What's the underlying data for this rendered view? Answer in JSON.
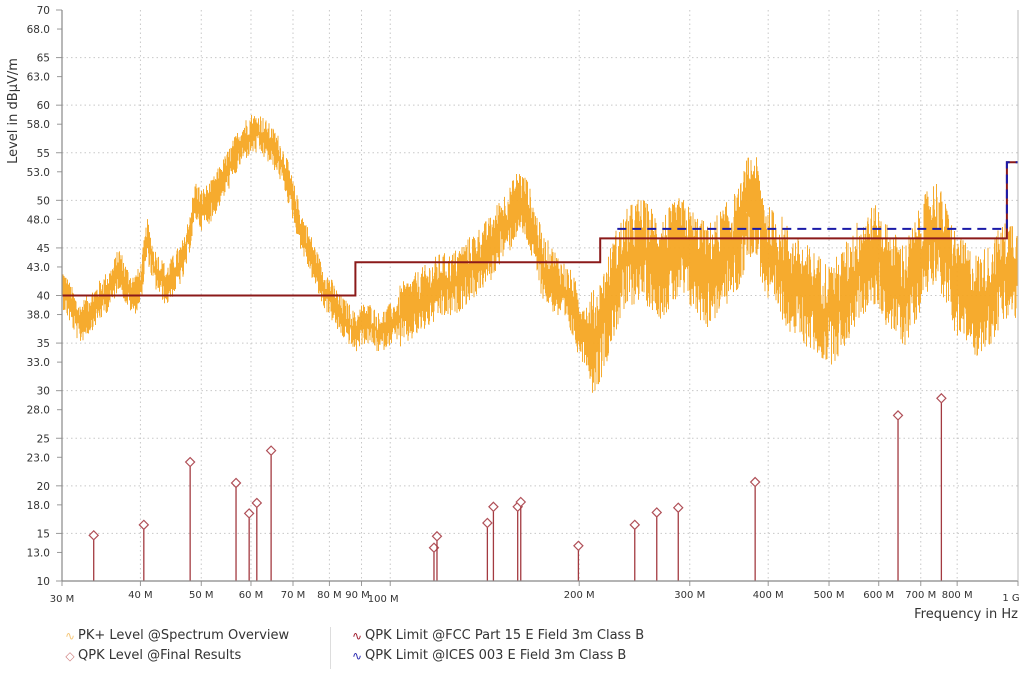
{
  "chart_data": {
    "type": "line",
    "xlabel": "Frequency in Hz",
    "ylabel": "Level in dBµV/m",
    "xscale": "log",
    "xlim_hz": [
      30000000,
      1000000000
    ],
    "ylim": [
      10,
      70
    ],
    "grid": true,
    "y_major_ticks": [
      {
        "value": 70,
        "label": "70"
      },
      {
        "value": 65,
        "label": "65"
      },
      {
        "value": 60,
        "label": "60"
      },
      {
        "value": 55,
        "label": "55"
      },
      {
        "value": 50,
        "label": "50"
      },
      {
        "value": 45,
        "label": "45"
      },
      {
        "value": 40,
        "label": "40"
      },
      {
        "value": 35,
        "label": "35"
      },
      {
        "value": 30,
        "label": "30"
      },
      {
        "value": 25,
        "label": "25"
      },
      {
        "value": 20,
        "label": "20"
      },
      {
        "value": 15,
        "label": "15"
      },
      {
        "value": 10,
        "label": "10"
      }
    ],
    "y_minor_ticks": [
      {
        "value": 68,
        "label": "68.0"
      },
      {
        "value": 63,
        "label": "63.0"
      },
      {
        "value": 58,
        "label": "58.0"
      },
      {
        "value": 53,
        "label": "53.0"
      },
      {
        "value": 48,
        "label": "48.0"
      },
      {
        "value": 43,
        "label": "43.0"
      },
      {
        "value": 38,
        "label": "38.0"
      },
      {
        "value": 33,
        "label": "33.0"
      },
      {
        "value": 28,
        "label": "28.0"
      },
      {
        "value": 23,
        "label": "23.0"
      },
      {
        "value": 18,
        "label": "18.0"
      },
      {
        "value": 13,
        "label": "13.0"
      }
    ],
    "x_ticks": [
      {
        "value": 30000000,
        "label": "30 M"
      },
      {
        "value": 40000000,
        "label": "40 M"
      },
      {
        "value": 50000000,
        "label": "50 M"
      },
      {
        "value": 60000000,
        "label": "60 M"
      },
      {
        "value": 70000000,
        "label": "70 M"
      },
      {
        "value": 80000000,
        "label": "80 M"
      },
      {
        "value": 90000000,
        "label": "90 M"
      },
      {
        "value": 100000000,
        "label": "100 M"
      },
      {
        "value": 200000000,
        "label": "200 M"
      },
      {
        "value": 300000000,
        "label": "300 M"
      },
      {
        "value": 400000000,
        "label": "400 M"
      },
      {
        "value": 500000000,
        "label": "500 M"
      },
      {
        "value": 600000000,
        "label": "600 M"
      },
      {
        "value": 700000000,
        "label": "700 M"
      },
      {
        "value": 800000000,
        "label": "800 M"
      },
      {
        "value": 1000000000,
        "label": "1 G"
      }
    ],
    "series": [
      {
        "name": "PK+ Level @Spectrum Overview",
        "kind": "spectrum",
        "color": "#f5a623",
        "envelope_mhz": [
          30,
          31,
          32,
          33,
          34,
          35,
          36,
          37,
          38,
          39,
          40,
          41,
          42,
          43,
          44,
          45,
          46,
          47,
          48,
          49,
          50,
          52,
          54,
          56,
          58,
          60,
          62,
          64,
          66,
          68,
          70,
          72,
          74,
          76,
          78,
          80,
          83,
          86,
          88,
          90,
          93,
          96,
          100,
          105,
          110,
          115,
          120,
          125,
          130,
          135,
          140,
          145,
          150,
          155,
          160,
          165,
          170,
          175,
          180,
          185,
          190,
          195,
          200,
          205,
          210,
          215,
          220,
          225,
          230,
          240,
          250,
          260,
          270,
          280,
          290,
          300,
          310,
          320,
          330,
          340,
          350,
          360,
          370,
          380,
          390,
          400,
          420,
          440,
          460,
          480,
          500,
          520,
          540,
          560,
          580,
          600,
          620,
          640,
          660,
          680,
          700,
          720,
          740,
          760,
          780,
          800,
          830,
          860,
          900,
          940,
          980,
          1000
        ],
        "level_center_dbuv": [
          41,
          39,
          37,
          38,
          39,
          40,
          41,
          43,
          41,
          40,
          41,
          46,
          43,
          42,
          41,
          42,
          43,
          44,
          47,
          50,
          49,
          50,
          52,
          54,
          56,
          57,
          57,
          56,
          55,
          53,
          50,
          47,
          45,
          43,
          41,
          40,
          38,
          37,
          36,
          37,
          37,
          36,
          37,
          38,
          39,
          40,
          41,
          41,
          42,
          43,
          44,
          45,
          47,
          48,
          50,
          49,
          46,
          43,
          42,
          41,
          40,
          39,
          37,
          36,
          35,
          36,
          38,
          40,
          42,
          44,
          45,
          44,
          43,
          44,
          45,
          44,
          43,
          42,
          43,
          44,
          45,
          46,
          49,
          50,
          47,
          44,
          43,
          41,
          40,
          39,
          38,
          39,
          41,
          43,
          44,
          44,
          42,
          41,
          40,
          42,
          44,
          46,
          47,
          45,
          43,
          41,
          40,
          39,
          40,
          42,
          43,
          42
        ]
      },
      {
        "name": "QPK Level @Final Results",
        "kind": "markers",
        "color": "#c0505a",
        "points": [
          {
            "f_mhz": 33.7,
            "level": 14.8
          },
          {
            "f_mhz": 40.5,
            "level": 15.9
          },
          {
            "f_mhz": 48.0,
            "level": 22.5
          },
          {
            "f_mhz": 56.8,
            "level": 20.3
          },
          {
            "f_mhz": 59.6,
            "level": 17.1
          },
          {
            "f_mhz": 61.3,
            "level": 18.2
          },
          {
            "f_mhz": 64.6,
            "level": 23.7
          },
          {
            "f_mhz": 117.4,
            "level": 13.5
          },
          {
            "f_mhz": 118.7,
            "level": 14.7
          },
          {
            "f_mhz": 142.8,
            "level": 16.1
          },
          {
            "f_mhz": 146.0,
            "level": 17.8
          },
          {
            "f_mhz": 159.6,
            "level": 17.8
          },
          {
            "f_mhz": 161.4,
            "level": 18.3
          },
          {
            "f_mhz": 199.4,
            "level": 13.7
          },
          {
            "f_mhz": 245.2,
            "level": 15.9
          },
          {
            "f_mhz": 265.8,
            "level": 17.2
          },
          {
            "f_mhz": 287.6,
            "level": 17.7
          },
          {
            "f_mhz": 381.3,
            "level": 20.4
          },
          {
            "f_mhz": 644.0,
            "level": 27.4
          },
          {
            "f_mhz": 755.0,
            "level": 29.2
          }
        ]
      },
      {
        "name": "QPK Limit @FCC Part 15 E Field 3m Class B",
        "kind": "limit",
        "color": "#8b1a1a",
        "steps": [
          {
            "f_start_mhz": 30,
            "f_end_mhz": 88,
            "level": 40
          },
          {
            "f_start_mhz": 88,
            "f_end_mhz": 216,
            "level": 43.5
          },
          {
            "f_start_mhz": 216,
            "f_end_mhz": 960,
            "level": 46
          },
          {
            "f_start_mhz": 960,
            "f_end_mhz": 1000,
            "level": 54
          }
        ]
      },
      {
        "name": "QPK Limit @ICES 003  E Field 3m Class B",
        "kind": "limit-dashed",
        "color": "#1a1aa8",
        "steps": [
          {
            "f_start_mhz": 230,
            "f_end_mhz": 960,
            "level": 47
          },
          {
            "f_start_mhz": 960,
            "f_end_mhz": 1000,
            "level": 54
          }
        ]
      }
    ],
    "legend": {
      "placement": "bottom",
      "entries": [
        {
          "label": "PK+ Level @Spectrum Overview",
          "symbol": "wave-icon",
          "color": "#f5c77a"
        },
        {
          "label": "QPK Level @Final Results",
          "symbol": "diamond-icon",
          "color": "#d08080"
        },
        {
          "label": "QPK Limit @FCC Part 15 E Field 3m Class B",
          "symbol": "wave-icon",
          "color": "#a01c2c"
        },
        {
          "label": "QPK Limit @ICES 003  E Field 3m Class B",
          "symbol": "wave-icon",
          "color": "#2a2ab0"
        }
      ]
    }
  }
}
